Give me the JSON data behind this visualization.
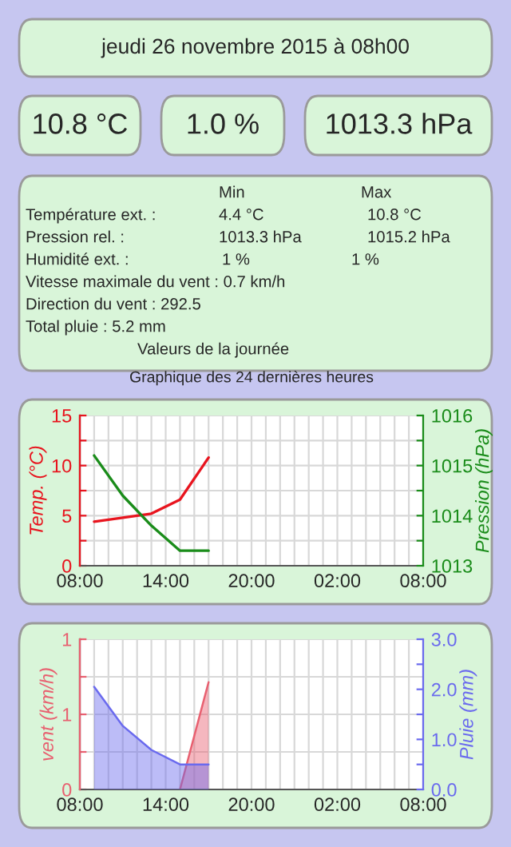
{
  "chart_data": [
    {
      "type": "other",
      "title": "jeudi 26 novembre 2015 à 08h00",
      "annotations": [
        "10.8 °C",
        "1.0 %",
        "1013.3 hPa"
      ]
    },
    {
      "type": "other",
      "title": "Valeurs de la journée",
      "annotations": [
        "Min",
        "Max",
        "Température ext. :",
        "4.4 °C",
        "10.8 °C",
        "Pression rel. :",
        "1013.3 hPa",
        "1015.2 hPa",
        "Humidité ext. :",
        "1 %",
        "1 %",
        "Vitesse maximale du vent : 0.7 km/h",
        "Direction du vent : 292.5",
        "Total pluie : 5.2 mm"
      ]
    },
    {
      "type": "line",
      "title": "Graphique des 24 dernières heures",
      "ylabel": "Temp. (°C)",
      "y2label": "Pression (hPa)",
      "grid": true,
      "xlim": [
        "2015-11-25T08:00",
        "2015-11-26T08:00"
      ],
      "xticks": [
        {
          "value": "2015-11-25T08:00",
          "label": "08:00"
        },
        {
          "value": "2015-11-25T09:00",
          "label": null
        },
        {
          "value": "2015-11-25T10:00",
          "label": null
        },
        {
          "value": "2015-11-25T11:00",
          "label": null
        },
        {
          "value": "2015-11-25T12:00",
          "label": null
        },
        {
          "value": "2015-11-25T13:00",
          "label": null
        },
        {
          "value": "2015-11-25T14:00",
          "label": "14:00"
        },
        {
          "value": "2015-11-25T15:00",
          "label": null
        },
        {
          "value": "2015-11-25T16:00",
          "label": null
        },
        {
          "value": "2015-11-25T17:00",
          "label": null
        },
        {
          "value": "2015-11-25T18:00",
          "label": null
        },
        {
          "value": "2015-11-25T19:00",
          "label": null
        },
        {
          "value": "2015-11-25T20:00",
          "label": "20:00"
        },
        {
          "value": "2015-11-25T21:00",
          "label": null
        },
        {
          "value": "2015-11-25T22:00",
          "label": null
        },
        {
          "value": "2015-11-25T23:00",
          "label": null
        },
        {
          "value": "2015-11-26T00:00",
          "label": null
        },
        {
          "value": "2015-11-26T01:00",
          "label": null
        },
        {
          "value": "2015-11-26T02:00",
          "label": "02:00"
        },
        {
          "value": "2015-11-26T03:00",
          "label": null
        },
        {
          "value": "2015-11-26T04:00",
          "label": null
        },
        {
          "value": "2015-11-26T05:00",
          "label": null
        },
        {
          "value": "2015-11-26T06:00",
          "label": null
        },
        {
          "value": "2015-11-26T07:00",
          "label": null
        },
        {
          "value": "2015-11-26T08:00",
          "label": "08:00"
        }
      ],
      "ylim": [
        0,
        15
      ],
      "yticks": [
        0,
        {
          "value": 2.5,
          "label": null
        },
        5,
        {
          "value": 7.5,
          "label": null
        },
        10,
        {
          "value": 12.5,
          "label": null
        },
        15
      ],
      "y2lim": [
        1013,
        1016
      ],
      "y2ticks": [
        1013,
        {
          "value": 1013.5,
          "label": null
        },
        1014,
        {
          "value": 1014.5,
          "label": null
        },
        1015,
        {
          "value": 1015.5,
          "label": null
        },
        1016
      ],
      "series": [
        {
          "color": "#e8141e",
          "x": [
            "2015-11-25T09:00",
            "2015-11-25T11:00",
            "2015-11-25T13:00",
            "2015-11-25T15:00",
            "2015-11-25T17:00"
          ],
          "values": [
            4.4,
            4.8,
            5.2,
            6.6,
            10.8
          ]
        },
        {
          "color": "#1a8c1a",
          "axis": "y2",
          "x": [
            "2015-11-25T09:00",
            "2015-11-25T11:00",
            "2015-11-25T13:00",
            "2015-11-25T15:00",
            "2015-11-25T17:00"
          ],
          "values": [
            1015.2,
            1014.4,
            1013.8,
            1013.3,
            1013.3
          ]
        }
      ]
    },
    {
      "type": "area",
      "ylabel": "vent (km/h)",
      "y2label": "Pluie (mm)",
      "grid": true,
      "xlim": [
        "2015-11-25T08:00",
        "2015-11-26T08:00"
      ],
      "xticks": [
        {
          "value": "2015-11-25T08:00",
          "label": "08:00"
        },
        {
          "value": "2015-11-25T09:00",
          "label": null
        },
        {
          "value": "2015-11-25T10:00",
          "label": null
        },
        {
          "value": "2015-11-25T11:00",
          "label": null
        },
        {
          "value": "2015-11-25T12:00",
          "label": null
        },
        {
          "value": "2015-11-25T13:00",
          "label": null
        },
        {
          "value": "2015-11-25T14:00",
          "label": "14:00"
        },
        {
          "value": "2015-11-25T15:00",
          "label": null
        },
        {
          "value": "2015-11-25T16:00",
          "label": null
        },
        {
          "value": "2015-11-25T17:00",
          "label": null
        },
        {
          "value": "2015-11-25T18:00",
          "label": null
        },
        {
          "value": "2015-11-25T19:00",
          "label": null
        },
        {
          "value": "2015-11-25T20:00",
          "label": "20:00"
        },
        {
          "value": "2015-11-25T21:00",
          "label": null
        },
        {
          "value": "2015-11-25T22:00",
          "label": null
        },
        {
          "value": "2015-11-25T23:00",
          "label": null
        },
        {
          "value": "2015-11-26T00:00",
          "label": null
        },
        {
          "value": "2015-11-26T01:00",
          "label": null
        },
        {
          "value": "2015-11-26T02:00",
          "label": "02:00"
        },
        {
          "value": "2015-11-26T03:00",
          "label": null
        },
        {
          "value": "2015-11-26T04:00",
          "label": null
        },
        {
          "value": "2015-11-26T05:00",
          "label": null
        },
        {
          "value": "2015-11-26T06:00",
          "label": null
        },
        {
          "value": "2015-11-26T07:00",
          "label": null
        },
        {
          "value": "2015-11-26T08:00",
          "label": "08:00"
        }
      ],
      "ylim": [
        0,
        1.4
      ],
      "yticks": [
        0,
        {
          "value": 0.35,
          "label": null
        },
        {
          "value": 0.7,
          "label": "1"
        },
        {
          "value": 1.05,
          "label": null
        },
        {
          "value": 1.4,
          "label": "1"
        }
      ],
      "y2lim": [
        0,
        3
      ],
      "y2ticks": [
        {
          "value": 0,
          "label": "0.0"
        },
        {
          "value": 0.5,
          "label": null
        },
        {
          "value": 1,
          "label": "1.0"
        },
        {
          "value": 1.5,
          "label": null
        },
        {
          "value": 2,
          "label": "2.0"
        },
        {
          "value": 2.5,
          "label": null
        },
        {
          "value": 3,
          "label": "3.0"
        }
      ],
      "series": [
        {
          "color": "#6a6aee",
          "axis": "y2",
          "x": [
            "2015-11-25T09:00",
            "2015-11-25T11:00",
            "2015-11-25T13:00",
            "2015-11-25T15:00",
            "2015-11-25T17:00"
          ],
          "values": [
            2.05,
            1.27,
            0.79,
            0.5,
            0.5
          ]
        },
        {
          "color": "#e86070",
          "x": [
            "2015-11-25T15:00",
            "2015-11-25T17:00"
          ],
          "values": [
            0,
            1.0
          ]
        }
      ]
    }
  ]
}
